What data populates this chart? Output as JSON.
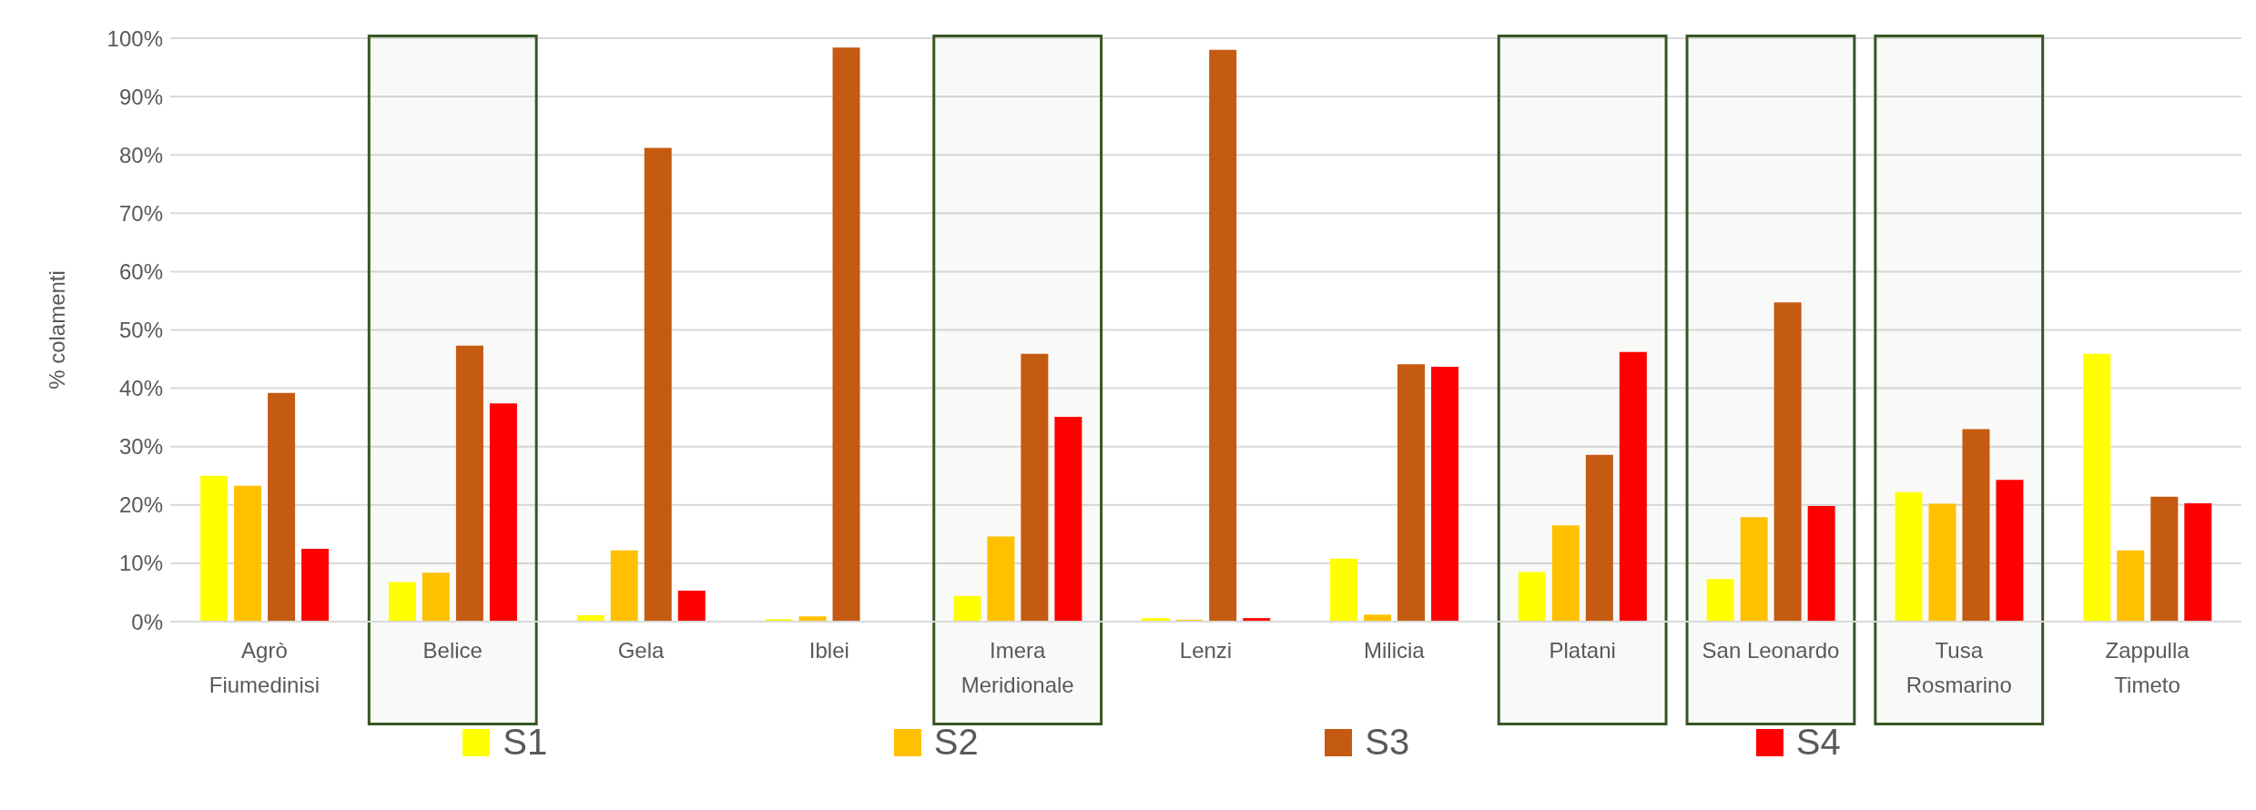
{
  "chart_data": {
    "type": "bar",
    "ylabel": "% colamenti",
    "categories": [
      "Agrò Fiumedinisi",
      "Belice",
      "Gela",
      "Iblei",
      "Imera Meridionale",
      "Lenzi",
      "Milicia",
      "Platani",
      "San Leonardo",
      "Tusa Rosmarino",
      "Zappulla Timeto"
    ],
    "series": [
      {
        "name": "S1",
        "color": "#ffff00",
        "values": [
          25,
          6.8,
          1.1,
          0.4,
          4.4,
          0.6,
          10.8,
          8.5,
          7.3,
          22.2,
          45.9
        ]
      },
      {
        "name": "S2",
        "color": "#ffc000",
        "values": [
          23.3,
          8.4,
          12.2,
          0.9,
          14.6,
          0.3,
          1.2,
          16.5,
          17.9,
          20.2,
          12.2
        ]
      },
      {
        "name": "S3",
        "color": "#c55a11",
        "values": [
          39.2,
          47.3,
          81.2,
          98.4,
          45.9,
          98,
          44.1,
          28.6,
          54.7,
          33,
          21.4
        ]
      },
      {
        "name": "S4",
        "color": "#ff0000",
        "values": [
          12.5,
          37.4,
          5.3,
          0,
          35.1,
          0.6,
          43.7,
          46.2,
          19.8,
          24.3,
          20.3
        ]
      }
    ],
    "ylim": [
      0,
      100
    ],
    "yticks": [
      {
        "value": 0,
        "label": "0%"
      },
      {
        "value": 10,
        "label": "10%"
      },
      {
        "value": 20,
        "label": "20%"
      },
      {
        "value": 30,
        "label": "30%"
      },
      {
        "value": 40,
        "label": "40%"
      },
      {
        "value": 50,
        "label": "50%"
      },
      {
        "value": 60,
        "label": "60%"
      },
      {
        "value": 70,
        "label": "70%"
      },
      {
        "value": 80,
        "label": "80%"
      },
      {
        "value": 90,
        "label": "90%"
      },
      {
        "value": 100,
        "label": "100%"
      }
    ],
    "grid": "y",
    "legend": "bottom",
    "bands": [
      {
        "axis": "x",
        "from": "Belice",
        "to": "Belice",
        "color": "#375623"
      },
      {
        "axis": "x",
        "from": "Imera Meridionale",
        "to": "Imera Meridionale",
        "color": "#375623"
      },
      {
        "axis": "x",
        "from": "Platani",
        "to": "Platani",
        "color": "#375623"
      },
      {
        "axis": "x",
        "from": "San Leonardo",
        "to": "San Leonardo",
        "color": "#375623"
      },
      {
        "axis": "x",
        "from": "Tusa Rosmarino",
        "to": "Tusa Rosmarino",
        "color": "#375623"
      }
    ]
  }
}
